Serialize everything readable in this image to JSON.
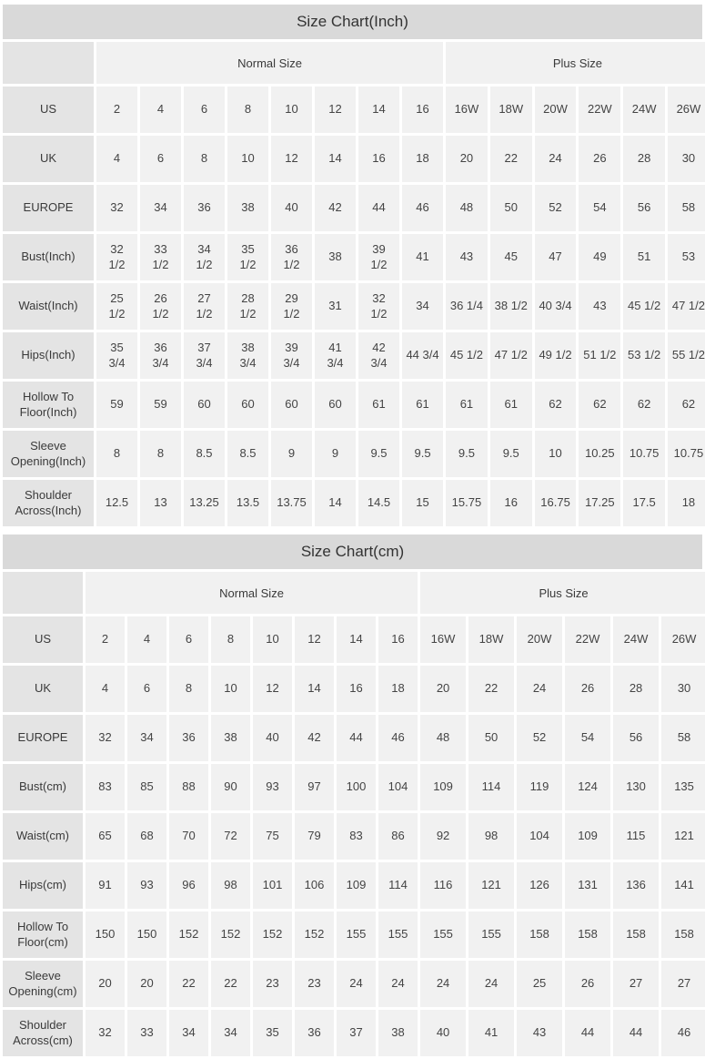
{
  "colors": {
    "title_bar_bg": "#d9d9d9",
    "label_cell_bg": "#e4e4e4",
    "data_cell_bg": "#f1f1f1",
    "text": "#333333"
  },
  "chart_data": [
    {
      "type": "table",
      "title": "Size Chart(Inch)",
      "column_groups": [
        {
          "label": "",
          "span": 1
        },
        {
          "label": "Normal Size",
          "span": 8
        },
        {
          "label": "Plus Size",
          "span": 6
        }
      ],
      "rows": [
        {
          "label": "US",
          "values": [
            "2",
            "4",
            "6",
            "8",
            "10",
            "12",
            "14",
            "16",
            "16W",
            "18W",
            "20W",
            "22W",
            "24W",
            "26W"
          ]
        },
        {
          "label": "UK",
          "values": [
            "4",
            "6",
            "8",
            "10",
            "12",
            "14",
            "16",
            "18",
            "20",
            "22",
            "24",
            "26",
            "28",
            "30"
          ]
        },
        {
          "label": "EUROPE",
          "values": [
            "32",
            "34",
            "36",
            "38",
            "40",
            "42",
            "44",
            "46",
            "48",
            "50",
            "52",
            "54",
            "56",
            "58"
          ]
        },
        {
          "label": "Bust(Inch)",
          "values": [
            "32\n1/2",
            "33\n1/2",
            "34\n1/2",
            "35\n1/2",
            "36\n1/2",
            "38",
            "39\n1/2",
            "41",
            "43",
            "45",
            "47",
            "49",
            "51",
            "53"
          ]
        },
        {
          "label": "Waist(Inch)",
          "values": [
            "25\n1/2",
            "26\n1/2",
            "27\n1/2",
            "28\n1/2",
            "29\n1/2",
            "31",
            "32\n1/2",
            "34",
            "36 1/4",
            "38 1/2",
            "40 3/4",
            "43",
            "45 1/2",
            "47 1/2"
          ]
        },
        {
          "label": "Hips(Inch)",
          "values": [
            "35\n3/4",
            "36\n3/4",
            "37\n3/4",
            "38\n3/4",
            "39\n3/4",
            "41\n3/4",
            "42\n3/4",
            "44 3/4",
            "45 1/2",
            "47 1/2",
            "49 1/2",
            "51 1/2",
            "53 1/2",
            "55 1/2"
          ]
        },
        {
          "label": "Hollow To Floor(Inch)",
          "values": [
            "59",
            "59",
            "60",
            "60",
            "60",
            "60",
            "61",
            "61",
            "61",
            "61",
            "62",
            "62",
            "62",
            "62"
          ]
        },
        {
          "label": "Sleeve Opening(Inch)",
          "values": [
            "8",
            "8",
            "8.5",
            "8.5",
            "9",
            "9",
            "9.5",
            "9.5",
            "9.5",
            "9.5",
            "10",
            "10.25",
            "10.75",
            "10.75"
          ]
        },
        {
          "label": "Shoulder Across(Inch)",
          "values": [
            "12.5",
            "13",
            "13.25",
            "13.5",
            "13.75",
            "14",
            "14.5",
            "15",
            "15.75",
            "16",
            "16.75",
            "17.25",
            "17.5",
            "18"
          ]
        }
      ]
    },
    {
      "type": "table",
      "title": "Size Chart(cm)",
      "column_groups": [
        {
          "label": "",
          "span": 1
        },
        {
          "label": "Normal Size",
          "span": 8
        },
        {
          "label": "Plus Size",
          "span": 6
        }
      ],
      "rows": [
        {
          "label": "US",
          "values": [
            "2",
            "4",
            "6",
            "8",
            "10",
            "12",
            "14",
            "16",
            "16W",
            "18W",
            "20W",
            "22W",
            "24W",
            "26W"
          ]
        },
        {
          "label": "UK",
          "values": [
            "4",
            "6",
            "8",
            "10",
            "12",
            "14",
            "16",
            "18",
            "20",
            "22",
            "24",
            "26",
            "28",
            "30"
          ]
        },
        {
          "label": "EUROPE",
          "values": [
            "32",
            "34",
            "36",
            "38",
            "40",
            "42",
            "44",
            "46",
            "48",
            "50",
            "52",
            "54",
            "56",
            "58"
          ]
        },
        {
          "label": "Bust(cm)",
          "values": [
            "83",
            "85",
            "88",
            "90",
            "93",
            "97",
            "100",
            "104",
            "109",
            "114",
            "119",
            "124",
            "130",
            "135"
          ]
        },
        {
          "label": "Waist(cm)",
          "values": [
            "65",
            "68",
            "70",
            "72",
            "75",
            "79",
            "83",
            "86",
            "92",
            "98",
            "104",
            "109",
            "115",
            "121"
          ]
        },
        {
          "label": "Hips(cm)",
          "values": [
            "91",
            "93",
            "96",
            "98",
            "101",
            "106",
            "109",
            "114",
            "116",
            "121",
            "126",
            "131",
            "136",
            "141"
          ]
        },
        {
          "label": "Hollow To Floor(cm)",
          "values": [
            "150",
            "150",
            "152",
            "152",
            "152",
            "152",
            "155",
            "155",
            "155",
            "155",
            "158",
            "158",
            "158",
            "158"
          ]
        },
        {
          "label": "Sleeve Opening(cm)",
          "values": [
            "20",
            "20",
            "22",
            "22",
            "23",
            "23",
            "24",
            "24",
            "24",
            "24",
            "25",
            "26",
            "27",
            "27"
          ]
        },
        {
          "label": "Shoulder Across(cm)",
          "values": [
            "32",
            "33",
            "34",
            "34",
            "35",
            "36",
            "37",
            "38",
            "40",
            "41",
            "43",
            "44",
            "44",
            "46"
          ]
        }
      ]
    }
  ]
}
